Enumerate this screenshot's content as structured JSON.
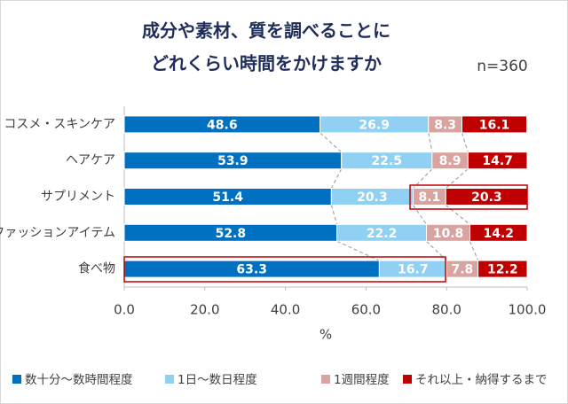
{
  "chart_data": {
    "type": "stacked_barh",
    "title": [
      "成分や素材、質を調べることに",
      "どれくらい時間をかけますか"
    ],
    "annotation": "n=360",
    "x_label": "%",
    "categories": [
      "コスメ・スキンケア",
      "ヘアケア",
      "サプリメント",
      "ファッションアイテム",
      "食べ物"
    ],
    "series": [
      {
        "name": "数十分～数時間程度",
        "color": "#0070c0",
        "values": [
          48.6,
          53.9,
          51.4,
          52.8,
          63.3
        ]
      },
      {
        "name": "1日～数日程度",
        "color": "#8fd0f3",
        "values": [
          26.9,
          22.5,
          20.3,
          22.2,
          16.7
        ]
      },
      {
        "name": "1週間程度",
        "color": "#d9a3a0",
        "values": [
          8.3,
          8.9,
          8.1,
          10.8,
          7.8
        ]
      },
      {
        "name": "それ以上・納得するまで",
        "color": "#c00000",
        "values": [
          16.1,
          14.7,
          20.3,
          14.2,
          12.2
        ]
      }
    ],
    "xlim": [
      0,
      100
    ],
    "xticks": [
      {
        "value": 0,
        "label": "0.0"
      },
      {
        "value": 20,
        "label": "20.0"
      },
      {
        "value": 40,
        "label": "40.0"
      },
      {
        "value": 60,
        "label": "60.0"
      },
      {
        "value": 80,
        "label": "80.0"
      },
      {
        "value": 100,
        "label": "100.0"
      }
    ],
    "legend": "bottom"
  }
}
